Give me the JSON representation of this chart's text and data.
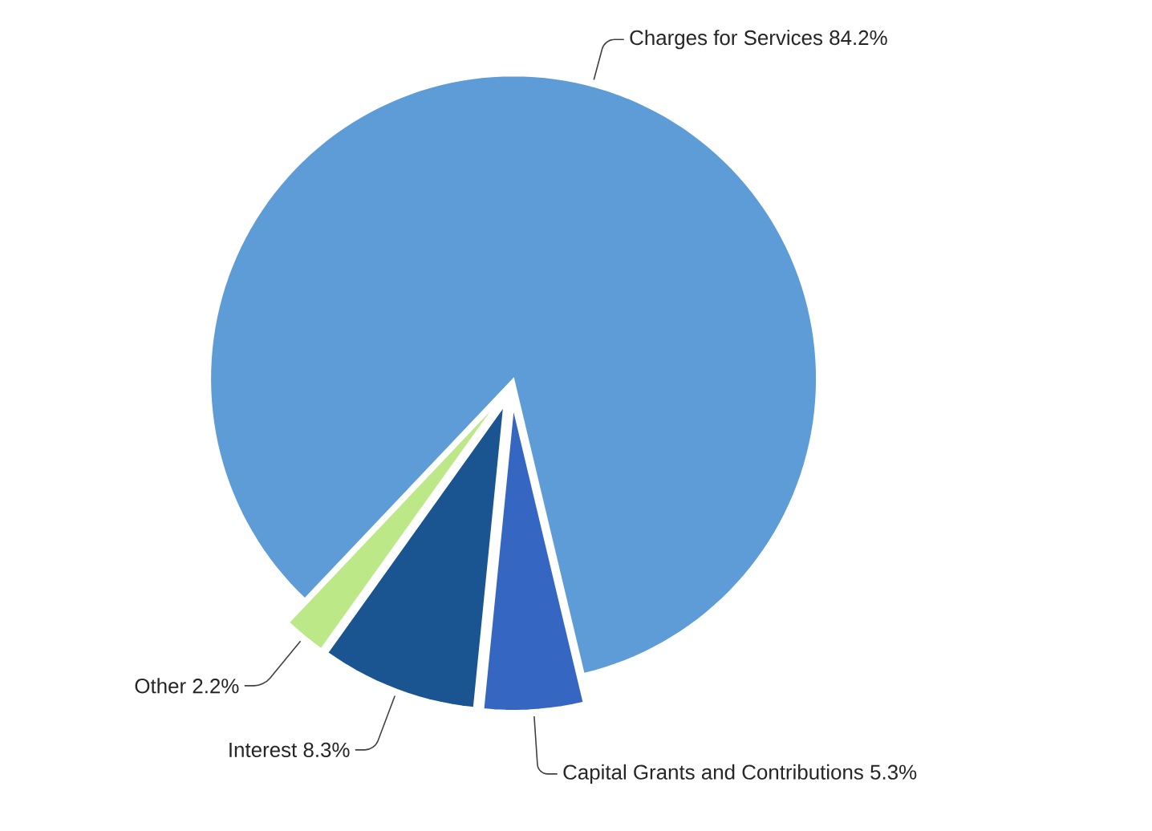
{
  "chart_data": {
    "type": "pie",
    "categories": [
      "Charges for Services",
      "Other",
      "Interest",
      "Capital Grants and Contributions"
    ],
    "values": [
      84.2,
      2.2,
      8.3,
      5.3
    ],
    "colors": [
      "#5e9cd8",
      "#bde888",
      "#1a5592",
      "#3566c2"
    ],
    "value_labels": [
      "84.2%",
      "2.2%",
      "8.3%",
      "5.3%"
    ]
  }
}
